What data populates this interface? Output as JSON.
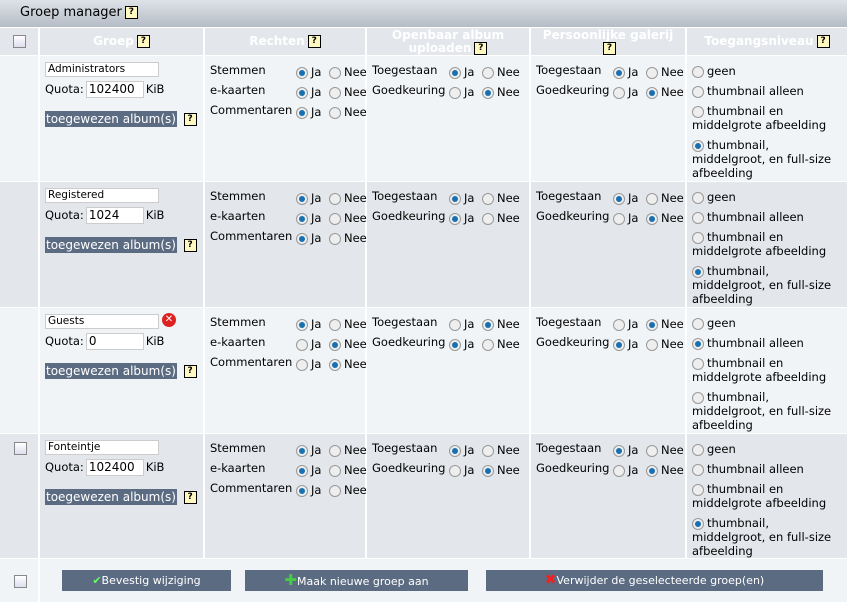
{
  "title": "Groep manager",
  "help_glyph": "?",
  "headers": {
    "group": "Groep",
    "rights": "Rechten",
    "upload_line1": "Openbaar album",
    "upload_line2": "uploaden",
    "personal": "Persoonlijke galerij",
    "access": "Toegangsniveau"
  },
  "labels": {
    "quota": "Quota:",
    "kib": "KiB",
    "album": "toegewezen album(s)",
    "vote": "Stemmen",
    "ecard": "e-kaarten",
    "comment": "Commentaren",
    "allowed": "Toegestaan",
    "approval": "Goedkeuring",
    "yes": "Ja",
    "no": "Nee"
  },
  "access_options": [
    "geen",
    "thumbnail alleen",
    "thumbnail en middelgrote afbeelding",
    "thumbnail, middelgroot, en full-size afbeelding"
  ],
  "groups": [
    {
      "name": "Administrators",
      "quota": "102400",
      "checkbox": false,
      "deletable": false,
      "vote": true,
      "ecard": true,
      "comment": true,
      "upload_allowed": true,
      "upload_approval": false,
      "personal_allowed": true,
      "personal_approval": false,
      "access": 3
    },
    {
      "name": "Registered",
      "quota": "1024",
      "checkbox": false,
      "deletable": false,
      "vote": true,
      "ecard": true,
      "comment": true,
      "upload_allowed": true,
      "upload_approval": true,
      "personal_allowed": true,
      "personal_approval": false,
      "access": 3
    },
    {
      "name": "Guests",
      "quota": "0",
      "checkbox": false,
      "deletable": true,
      "vote": true,
      "ecard": false,
      "comment": false,
      "upload_allowed": false,
      "upload_approval": true,
      "personal_allowed": false,
      "personal_approval": true,
      "access": 1
    },
    {
      "name": "Fonteintje",
      "quota": "102400",
      "checkbox": true,
      "deletable": false,
      "vote": true,
      "ecard": true,
      "comment": true,
      "upload_allowed": true,
      "upload_approval": false,
      "personal_allowed": true,
      "personal_approval": false,
      "access": 3
    }
  ],
  "buttons": {
    "apply": "Bevestig wijziging",
    "new": "Maak nieuwe groep aan",
    "delete": "Verwijder de geselecteerde groep(en)"
  },
  "colors": {
    "button": "#5b6b82",
    "row_alt": "#e3e7ec",
    "row": "#f1f4f7",
    "radio": "#1a6fb0"
  }
}
